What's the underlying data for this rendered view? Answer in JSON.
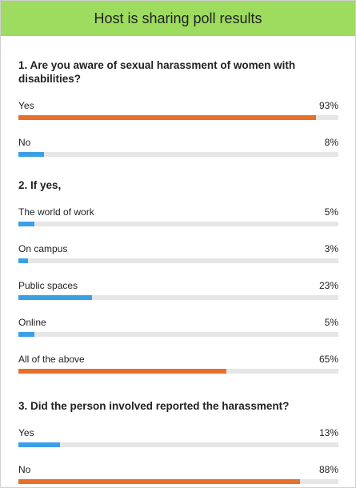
{
  "header": {
    "title": "Host is sharing poll results"
  },
  "colors": {
    "high": "#e86f2a",
    "low": "#3aa0e6",
    "header_bg": "#9ddc5f",
    "track": "#e6e6e6"
  },
  "questions": [
    {
      "title": "1. Are you aware of sexual harassment of women with disabilities?",
      "answers": [
        {
          "label": "Yes",
          "percent_text": "93%",
          "percent": 93,
          "color": "#e86f2a"
        },
        {
          "label": "No",
          "percent_text": "8%",
          "percent": 8,
          "color": "#3aa0e6"
        }
      ]
    },
    {
      "title": "2. If yes,",
      "answers": [
        {
          "label": "The world of work",
          "percent_text": "5%",
          "percent": 5,
          "color": "#3aa0e6"
        },
        {
          "label": "On campus",
          "percent_text": "3%",
          "percent": 3,
          "color": "#3aa0e6"
        },
        {
          "label": "Public spaces",
          "percent_text": "23%",
          "percent": 23,
          "color": "#3aa0e6"
        },
        {
          "label": "Online",
          "percent_text": "5%",
          "percent": 5,
          "color": "#3aa0e6"
        },
        {
          "label": "All of the above",
          "percent_text": "65%",
          "percent": 65,
          "color": "#e86f2a"
        }
      ]
    },
    {
      "title": "3. Did the person involved reported the harassment?",
      "answers": [
        {
          "label": "Yes",
          "percent_text": "13%",
          "percent": 13,
          "color": "#3aa0e6"
        },
        {
          "label": "No",
          "percent_text": "88%",
          "percent": 88,
          "color": "#e86f2a"
        }
      ]
    }
  ]
}
